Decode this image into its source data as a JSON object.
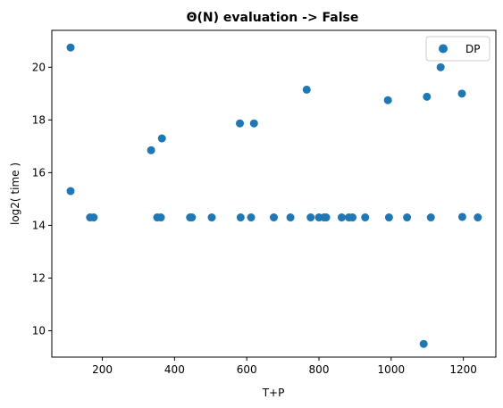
{
  "chart_data": {
    "type": "scatter",
    "title": "Θ(N) evaluation -> False",
    "xlabel": "T+P",
    "ylabel": "log2( time )",
    "xlim": [
      60,
      1290
    ],
    "ylim": [
      9.0,
      21.4
    ],
    "xticks": [
      200,
      400,
      600,
      800,
      1000,
      1200
    ],
    "yticks": [
      10,
      12,
      14,
      16,
      18,
      20
    ],
    "grid": false,
    "legend_position": "top-right",
    "series": [
      {
        "name": "DP",
        "color": "#1f77b4",
        "points": [
          {
            "x": 112,
            "y": 20.75
          },
          {
            "x": 112,
            "y": 15.3
          },
          {
            "x": 166,
            "y": 14.3
          },
          {
            "x": 176,
            "y": 14.3
          },
          {
            "x": 335,
            "y": 16.85
          },
          {
            "x": 352,
            "y": 14.3
          },
          {
            "x": 362,
            "y": 14.3
          },
          {
            "x": 365,
            "y": 17.3
          },
          {
            "x": 443,
            "y": 14.3
          },
          {
            "x": 448,
            "y": 14.3
          },
          {
            "x": 503,
            "y": 14.3
          },
          {
            "x": 581,
            "y": 17.87
          },
          {
            "x": 583,
            "y": 14.3
          },
          {
            "x": 612,
            "y": 14.3
          },
          {
            "x": 620,
            "y": 17.87
          },
          {
            "x": 675,
            "y": 14.3
          },
          {
            "x": 721,
            "y": 14.3
          },
          {
            "x": 766,
            "y": 19.15
          },
          {
            "x": 777,
            "y": 14.3
          },
          {
            "x": 800,
            "y": 14.3
          },
          {
            "x": 814,
            "y": 14.3
          },
          {
            "x": 820,
            "y": 14.3
          },
          {
            "x": 863,
            "y": 14.3
          },
          {
            "x": 883,
            "y": 14.3
          },
          {
            "x": 893,
            "y": 14.3
          },
          {
            "x": 928,
            "y": 14.3
          },
          {
            "x": 991,
            "y": 18.75
          },
          {
            "x": 994,
            "y": 14.3
          },
          {
            "x": 1044,
            "y": 14.3
          },
          {
            "x": 1090,
            "y": 9.5
          },
          {
            "x": 1099,
            "y": 18.88
          },
          {
            "x": 1110,
            "y": 14.3
          },
          {
            "x": 1137,
            "y": 20.0
          },
          {
            "x": 1196,
            "y": 19.0
          },
          {
            "x": 1197,
            "y": 14.32
          },
          {
            "x": 1240,
            "y": 14.3
          }
        ]
      }
    ]
  }
}
